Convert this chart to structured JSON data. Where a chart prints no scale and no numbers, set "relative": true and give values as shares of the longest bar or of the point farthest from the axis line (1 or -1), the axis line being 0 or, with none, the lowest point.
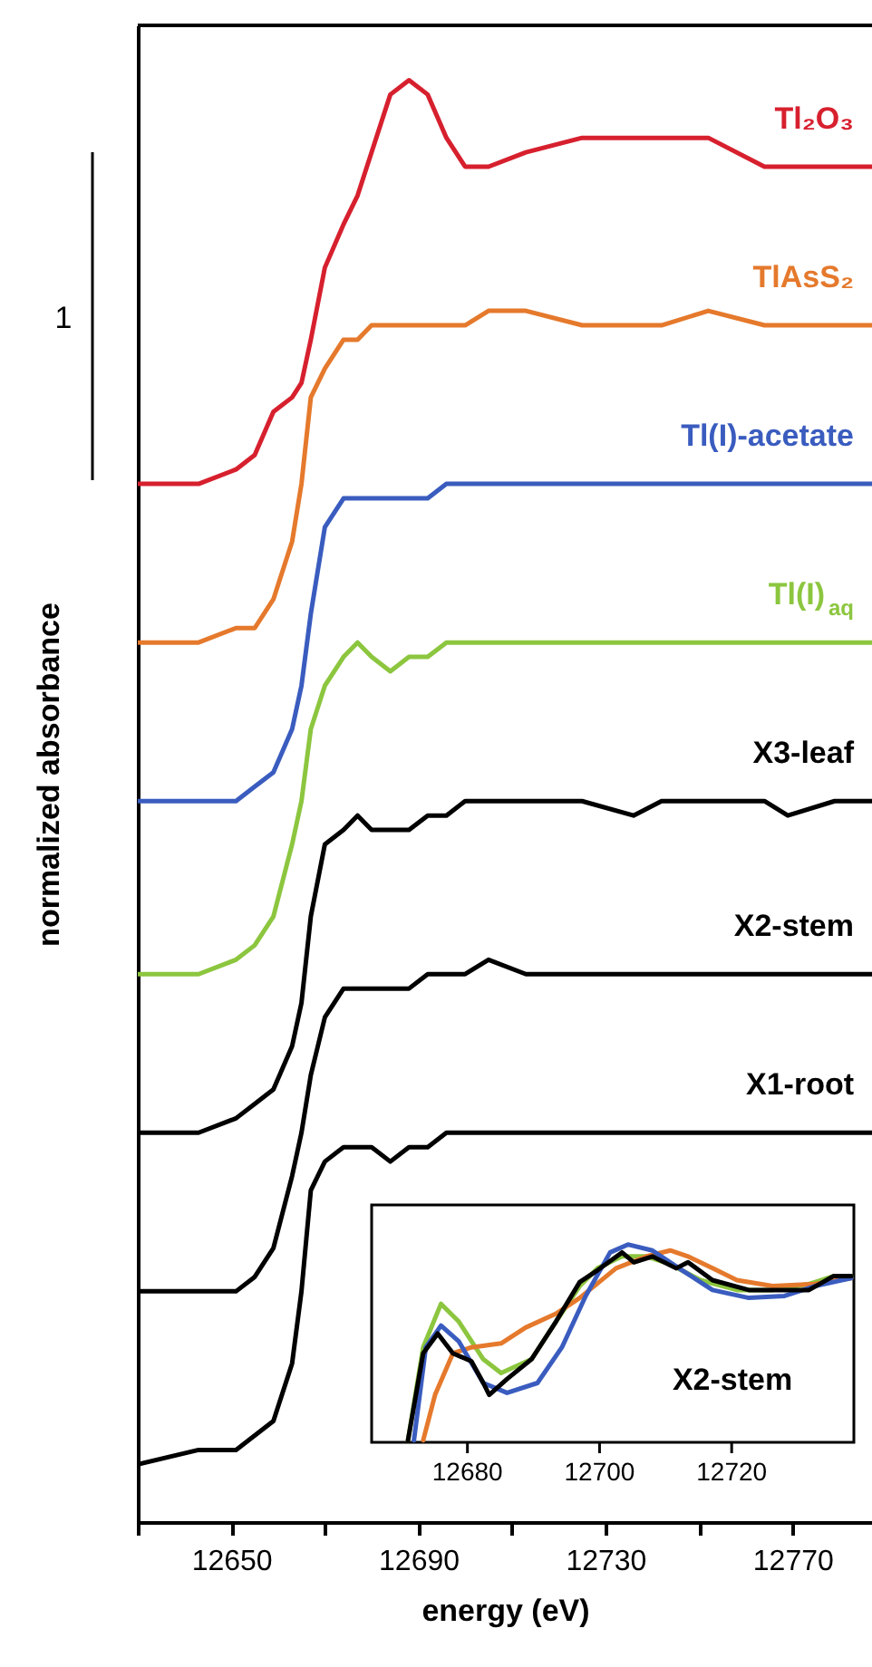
{
  "chart_data": [
    {
      "type": "line",
      "relative": true,
      "xlabel": "energy (eV)",
      "ylabel": "normalized absorbance",
      "xlim": [
        12630,
        12787
      ],
      "xticks": [
        {
          "value": 12630,
          "label": null
        },
        12650,
        {
          "value": 12670,
          "label": null
        },
        12690,
        {
          "value": 12710,
          "label": null
        },
        12730,
        {
          "value": 12750,
          "label": null
        },
        12770
      ],
      "annotations": [
        "1"
      ],
      "x": [
        12630,
        12643,
        12651,
        12655,
        12659,
        12663,
        12665,
        12667,
        12670,
        12674,
        12677,
        12680,
        12684,
        12688,
        12692,
        12696,
        12700,
        12705,
        12713,
        12725,
        12736,
        12742,
        12752,
        12764,
        12769,
        12779,
        12787
      ],
      "series": [
        {
          "name": "Tl₂O₃",
          "color": "#d7202e",
          "values": [
            0.72,
            0.72,
            0.73,
            0.74,
            0.77,
            0.78,
            0.79,
            0.82,
            0.87,
            0.9,
            0.92,
            0.95,
            0.99,
            1,
            0.99,
            0.96,
            0.94,
            0.94,
            0.95,
            0.96,
            0.96,
            0.96,
            0.96,
            0.94,
            0.94,
            0.94,
            0.94
          ]
        },
        {
          "name": "TlAsS₂",
          "color": "#e5792c",
          "values": [
            0.61,
            0.61,
            0.62,
            0.62,
            0.64,
            0.68,
            0.72,
            0.78,
            0.8,
            0.82,
            0.82,
            0.83,
            0.83,
            0.83,
            0.83,
            0.83,
            0.83,
            0.84,
            0.84,
            0.83,
            0.83,
            0.83,
            0.84,
            0.83,
            0.83,
            0.83,
            0.83
          ]
        },
        {
          "name": "Tl(I)-acetate",
          "color": "#3a5cbf",
          "values": [
            0.5,
            0.5,
            0.5,
            0.51,
            0.52,
            0.55,
            0.58,
            0.63,
            0.69,
            0.71,
            0.71,
            0.71,
            0.71,
            0.71,
            0.71,
            0.72,
            0.72,
            0.72,
            0.72,
            0.72,
            0.72,
            0.72,
            0.72,
            0.72,
            0.72,
            0.72,
            0.72
          ]
        },
        {
          "name": "Tl(I)$_{aq}$",
          "color": "#8cc63f",
          "values": [
            0.38,
            0.38,
            0.39,
            0.4,
            0.42,
            0.47,
            0.5,
            0.55,
            0.58,
            0.6,
            0.61,
            0.6,
            0.59,
            0.6,
            0.6,
            0.61,
            0.61,
            0.61,
            0.61,
            0.61,
            0.61,
            0.61,
            0.61,
            0.61,
            0.61,
            0.61,
            0.61
          ]
        },
        {
          "name": "X3-leaf",
          "color": "#000000",
          "values": [
            0.27,
            0.27,
            0.28,
            0.29,
            0.3,
            0.33,
            0.36,
            0.42,
            0.47,
            0.48,
            0.49,
            0.48,
            0.48,
            0.48,
            0.49,
            0.49,
            0.5,
            0.5,
            0.5,
            0.5,
            0.49,
            0.5,
            0.5,
            0.5,
            0.49,
            0.5,
            0.5
          ]
        },
        {
          "name": "X2-stem",
          "color": "#000000",
          "values": [
            0.16,
            0.16,
            0.16,
            0.17,
            0.19,
            0.24,
            0.27,
            0.31,
            0.35,
            0.37,
            0.37,
            0.37,
            0.37,
            0.37,
            0.38,
            0.38,
            0.38,
            0.39,
            0.38,
            0.38,
            0.38,
            0.38,
            0.38,
            0.38,
            0.38,
            0.38,
            0.38
          ]
        },
        {
          "name": "X1-root",
          "color": "#000000",
          "values": [
            0.04,
            0.05,
            0.05,
            0.06,
            0.07,
            0.11,
            0.16,
            0.23,
            0.25,
            0.26,
            0.26,
            0.26,
            0.25,
            0.26,
            0.26,
            0.27,
            0.27,
            0.27,
            0.27,
            0.27,
            0.27,
            0.27,
            0.27,
            0.27,
            0.27,
            0.27,
            0.27
          ]
        }
      ]
    },
    {
      "type": "line",
      "relative": true,
      "tick_labels": "x",
      "xlim": [
        12665.5,
        12738.5
      ],
      "xticks": [
        12680,
        12700,
        12720
      ],
      "annotations": [
        "X2-stem"
      ],
      "series": [
        {
          "color": "#8cc63f",
          "x": [
            12671.0,
            12673.3,
            12676.0,
            12678.7,
            12682.4,
            12685.1,
            12689.7,
            12693.4,
            12697.0,
            12699.7,
            12703.4,
            12707.1,
            12710.7,
            12715.3,
            12720.8,
            12726.2,
            12731.7,
            12735.4,
            12738.1
          ],
          "values": [
            0.01,
            0.48,
            0.7,
            0.61,
            0.42,
            0.35,
            0.42,
            0.61,
            0.79,
            0.88,
            0.94,
            0.94,
            0.9,
            0.82,
            0.77,
            0.77,
            0.8,
            0.84,
            0.84
          ]
        },
        {
          "color": "#e5792c",
          "x": [
            12673.3,
            12675.1,
            12677.8,
            12680.6,
            12685.1,
            12688.8,
            12693.4,
            12697.0,
            12702.5,
            12707.1,
            12710.7,
            12713.4,
            12717.1,
            12720.8,
            12726.2,
            12732.6,
            12738.1
          ],
          "values": [
            0.01,
            0.24,
            0.45,
            0.48,
            0.5,
            0.58,
            0.65,
            0.73,
            0.88,
            0.94,
            0.97,
            0.94,
            0.88,
            0.82,
            0.79,
            0.8,
            0.83
          ]
        },
        {
          "color": "#3a5cbf",
          "x": [
            12671.9,
            12673.7,
            12676.0,
            12678.7,
            12682.4,
            12686.0,
            12690.6,
            12694.3,
            12697.9,
            12701.6,
            12704.3,
            12708.0,
            12712.5,
            12717.1,
            12722.6,
            12728.0,
            12732.6,
            12738.1
          ],
          "values": [
            0.01,
            0.48,
            0.59,
            0.51,
            0.3,
            0.25,
            0.3,
            0.48,
            0.74,
            0.96,
            1,
            0.97,
            0.87,
            0.77,
            0.73,
            0.74,
            0.79,
            0.83
          ]
        },
        {
          "color": "#000000",
          "x": [
            12671.0,
            12673.3,
            12675.5,
            12677.8,
            12680.6,
            12682.4,
            12683.3,
            12686.0,
            12689.7,
            12693.4,
            12697.0,
            12699.7,
            12703.4,
            12705.2,
            12708.0,
            12711.6,
            12713.4,
            12717.1,
            12722.6,
            12728.0,
            12731.7,
            12735.4,
            12738.1
          ],
          "values": [
            0.01,
            0.45,
            0.55,
            0.45,
            0.41,
            0.3,
            0.24,
            0.32,
            0.42,
            0.61,
            0.81,
            0.87,
            0.96,
            0.91,
            0.94,
            0.88,
            0.91,
            0.82,
            0.77,
            0.77,
            0.77,
            0.84,
            0.84
          ]
        }
      ]
    }
  ]
}
